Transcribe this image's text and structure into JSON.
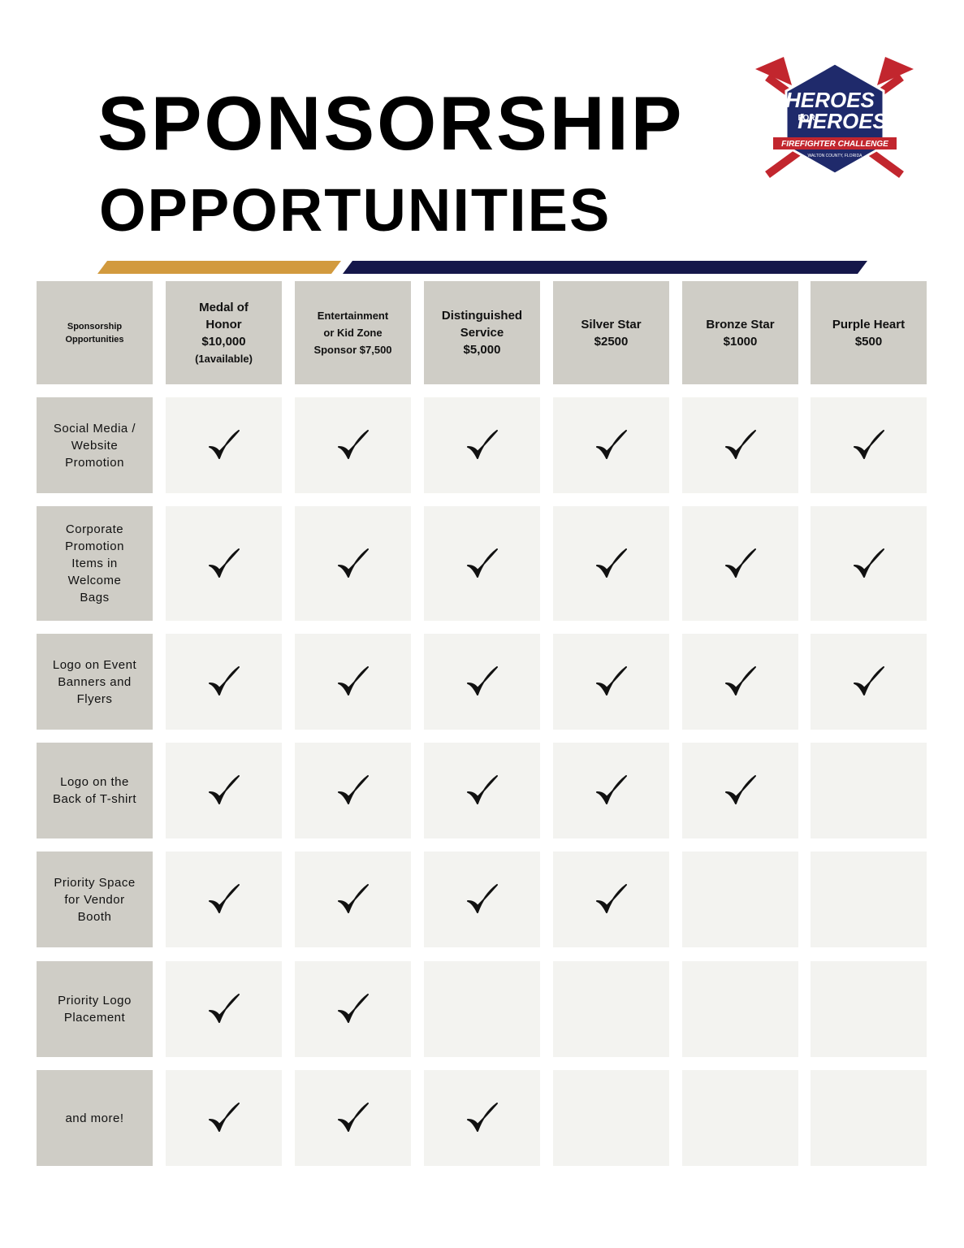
{
  "header": {
    "title": "SPONSORSHIP",
    "subtitle": "OPPORTUNITIES"
  },
  "logo": {
    "line1": "HEROES",
    "line2": "FOR",
    "line3": "HEROES",
    "banner": "FIREFIGHTER CHALLENGE",
    "location": "WALTON COUNTY, FLORIDA"
  },
  "table": {
    "corner": [
      "Sponsorship",
      "Opportunities"
    ],
    "columns": [
      [
        "Medal of",
        "Honor",
        "$10,000",
        "(1available)"
      ],
      [
        "Entertainment",
        "or Kid Zone",
        "Sponsor $7,500"
      ],
      [
        "Distinguished",
        "Service",
        "$5,000"
      ],
      [
        "Silver Star",
        "$2500"
      ],
      [
        "Bronze Star",
        "$1000"
      ],
      [
        "Purple Heart",
        "$500"
      ]
    ],
    "rows": [
      {
        "label": [
          "Social Media /",
          "Website",
          "Promotion"
        ],
        "checks": [
          true,
          true,
          true,
          true,
          true,
          true
        ]
      },
      {
        "label": [
          "Corporate",
          "Promotion",
          "Items in",
          "Welcome",
          "Bags"
        ],
        "checks": [
          true,
          true,
          true,
          true,
          true,
          true
        ]
      },
      {
        "label": [
          "Logo on Event",
          "Banners and",
          "Flyers"
        ],
        "checks": [
          true,
          true,
          true,
          true,
          true,
          true
        ]
      },
      {
        "label": [
          "Logo on the",
          "Back of T-shirt"
        ],
        "checks": [
          true,
          true,
          true,
          true,
          true,
          false
        ]
      },
      {
        "label": [
          "Priority Space",
          "for Vendor",
          "Booth"
        ],
        "checks": [
          true,
          true,
          true,
          true,
          false,
          false
        ]
      },
      {
        "label": [
          "Priority Logo",
          "Placement"
        ],
        "checks": [
          true,
          true,
          false,
          false,
          false,
          false
        ]
      },
      {
        "label": [
          "and more!"
        ],
        "checks": [
          true,
          true,
          true,
          false,
          false,
          false
        ]
      }
    ]
  }
}
